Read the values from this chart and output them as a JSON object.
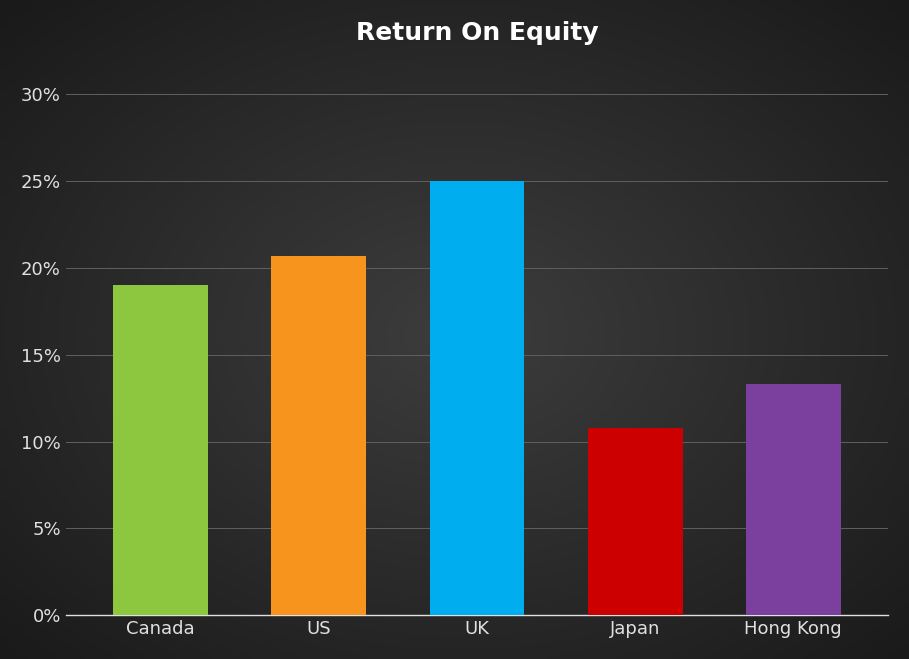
{
  "title": "Return On Equity",
  "categories": [
    "Canada",
    "US",
    "UK",
    "Japan",
    "Hong Kong"
  ],
  "values": [
    0.19,
    0.207,
    0.25,
    0.108,
    0.133
  ],
  "bar_colors": [
    "#8dc63f",
    "#f7941d",
    "#00aeef",
    "#cc0000",
    "#7b3f9e"
  ],
  "background_color_center": "#3d3d3d",
  "background_color_edge": "#1a1a1a",
  "title_color": "#ffffff",
  "tick_label_color": "#e0e0e0",
  "grid_color": "#606060",
  "yticks": [
    0,
    0.05,
    0.1,
    0.15,
    0.2,
    0.25,
    0.3
  ],
  "ytick_labels": [
    "0%",
    "5%",
    "10%",
    "15%",
    "20%",
    "25%",
    "30%"
  ],
  "ylim": [
    0,
    0.32
  ],
  "title_fontsize": 18,
  "tick_fontsize": 13,
  "bar_width": 0.6
}
